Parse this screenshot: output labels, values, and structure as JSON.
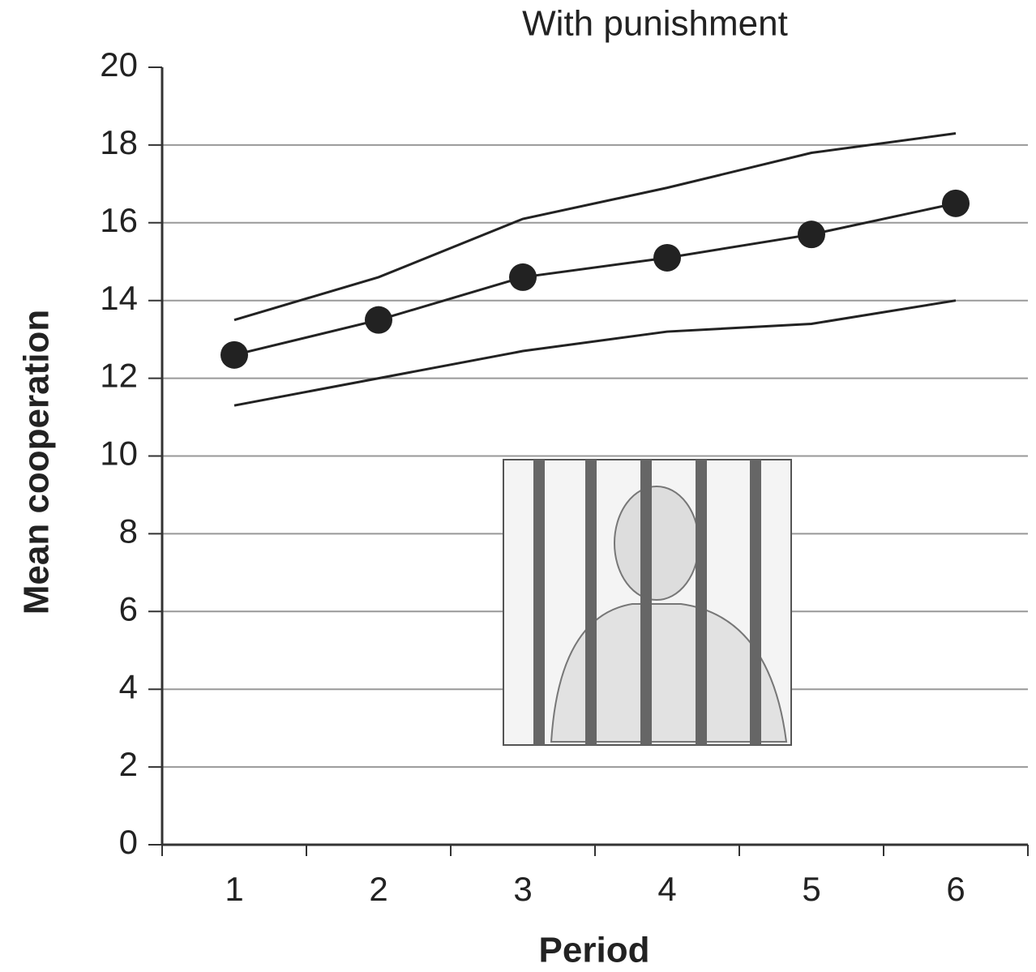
{
  "chart_data": {
    "type": "line",
    "title": "With punishment",
    "x_label": "Period",
    "y_label": "Mean cooperation",
    "categories": [
      "1",
      "2",
      "3",
      "4",
      "5",
      "6"
    ],
    "series": [
      {
        "color": "#222222",
        "marker": true,
        "values": [
          12.6,
          13.5,
          14.6,
          15.1,
          15.7,
          16.5
        ]
      },
      {
        "color": "#222222",
        "marker": false,
        "values": [
          13.5,
          14.6,
          16.1,
          16.9,
          17.8,
          18.3
        ]
      },
      {
        "color": "#222222",
        "marker": false,
        "values": [
          11.3,
          12.0,
          12.7,
          13.2,
          13.4,
          14.0
        ]
      }
    ],
    "ylim": [
      0,
      20
    ],
    "yticks": [
      0,
      2,
      4,
      6,
      8,
      10,
      12,
      14,
      16,
      18,
      20
    ],
    "grid": true
  }
}
